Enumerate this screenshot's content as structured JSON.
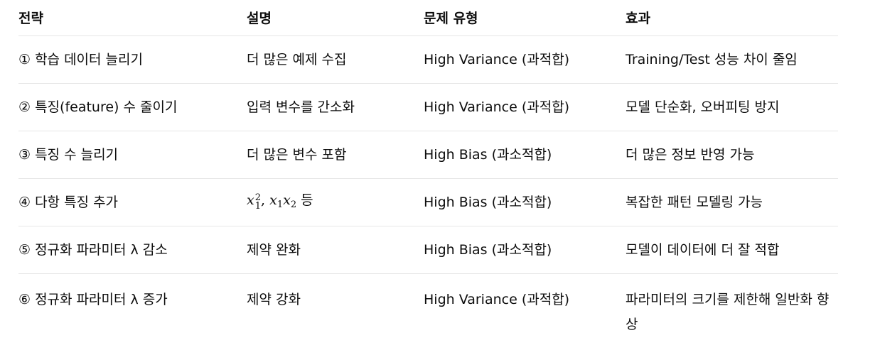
{
  "headers": {
    "strategy": "전략",
    "description": "설명",
    "problem_type": "문제 유형",
    "effect": "효과"
  },
  "rows": [
    {
      "strategy": "① 학습 데이터 늘리기",
      "description": "더 많은 예제 수집",
      "problem_type": "High Variance (과적합)",
      "effect": "Training/Test 성능 차이 줄임"
    },
    {
      "strategy": "② 특징(feature) 수 줄이기",
      "description": "입력 변수를 간소화",
      "problem_type": "High Variance (과적합)",
      "effect": "모델 단순화, 오버피팅 방지"
    },
    {
      "strategy": "③ 특징 수 늘리기",
      "description": "더 많은 변수 포함",
      "problem_type": "High Bias (과소적합)",
      "effect": "더 많은 정보 반영 가능"
    },
    {
      "strategy": "④ 다항 특징 추가",
      "description_math": {
        "term1_var": "x",
        "term1_sub": "1",
        "term1_sup": "2",
        "separator": ",",
        "term2_var1": "x",
        "term2_sub1": "1",
        "term2_var2": "x",
        "term2_sub2": "2",
        "suffix": "등"
      },
      "problem_type": "High Bias (과소적합)",
      "effect": "복잡한 패턴 모델링 가능"
    },
    {
      "strategy": "⑤ 정규화 파라미터 λ 감소",
      "description": "제약 완화",
      "problem_type": "High Bias (과소적합)",
      "effect": "모델이 데이터에 더 잘 적합"
    },
    {
      "strategy": "⑥ 정규화 파라미터 λ 증가",
      "description": "제약 강화",
      "problem_type": "High Variance (과적합)",
      "effect": "파라미터의 크기를 제한해 일반화 향상"
    }
  ]
}
